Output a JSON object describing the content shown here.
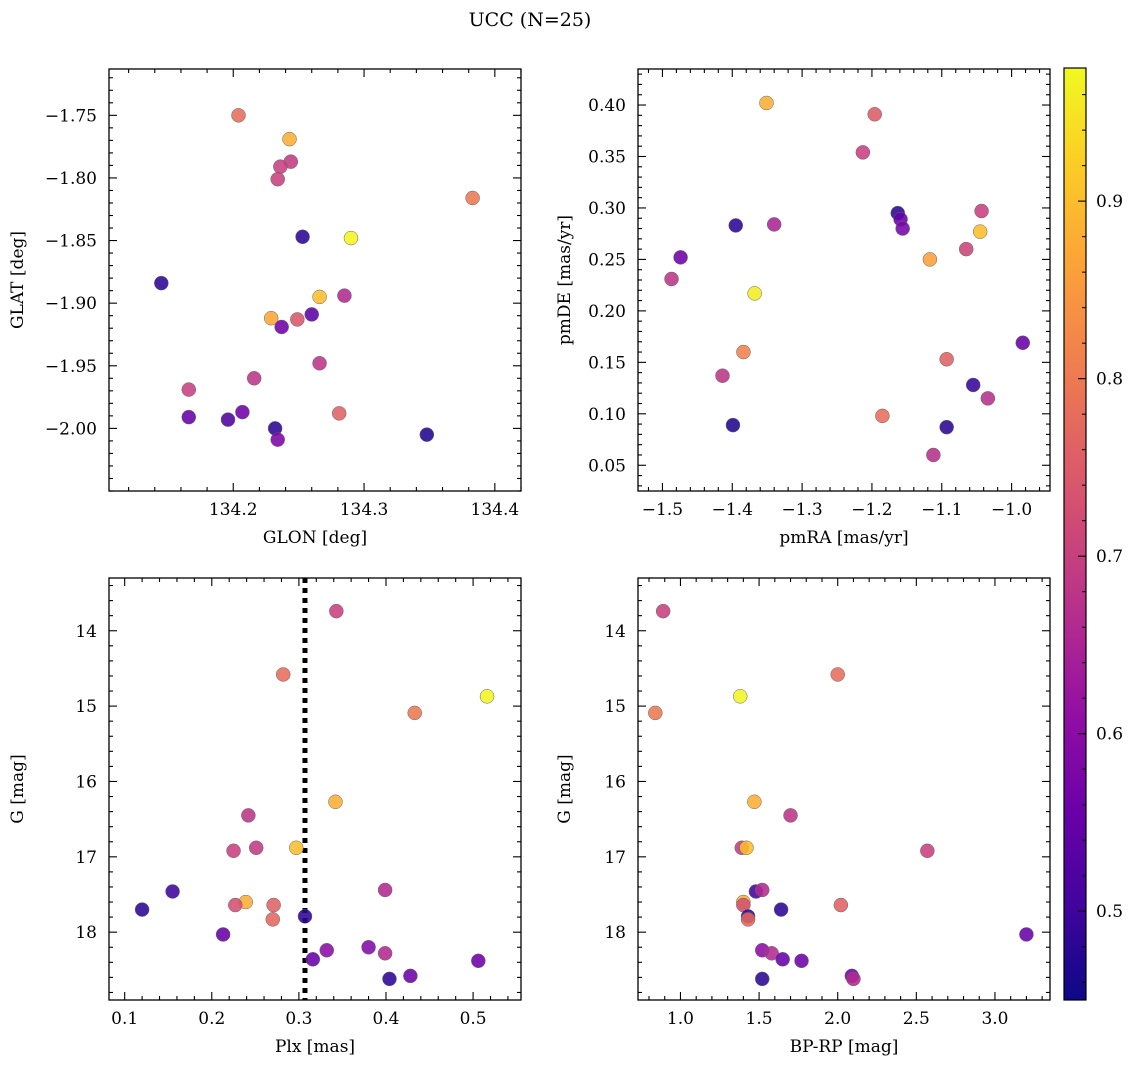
{
  "title": "UCC (N=25)",
  "colorbar": {
    "range": [
      0.45,
      0.975
    ],
    "ticks": [
      0.5,
      0.6,
      0.7,
      0.8,
      0.9
    ],
    "tick_labels": [
      "0.5",
      "0.6",
      "0.7",
      "0.8",
      "0.9"
    ],
    "colormap": "plasma"
  },
  "chart_data": [
    {
      "type": "scatter",
      "xlabel": "GLON [deg]",
      "ylabel": "GLAT [deg]",
      "xlim": [
        134.105,
        134.42
      ],
      "ylim": [
        -2.05,
        -1.713
      ],
      "y_inverted": false,
      "xticks": [
        134.2,
        134.3,
        134.4
      ],
      "xtick_labels": [
        "134.2",
        "134.3",
        "134.4"
      ],
      "yticks": [
        -2.0,
        -1.95,
        -1.9,
        -1.85,
        -1.8,
        -1.75
      ],
      "ytick_labels": [
        "−2.00",
        "−1.95",
        "−1.90",
        "−1.85",
        "−1.80",
        "−1.75"
      ],
      "points": [
        {
          "x": 134.204,
          "y": -1.75,
          "c": 0.78
        },
        {
          "x": 134.243,
          "y": -1.769,
          "c": 0.88
        },
        {
          "x": 134.244,
          "y": -1.787,
          "c": 0.69
        },
        {
          "x": 134.236,
          "y": -1.791,
          "c": 0.7
        },
        {
          "x": 134.234,
          "y": -1.801,
          "c": 0.7
        },
        {
          "x": 134.383,
          "y": -1.816,
          "c": 0.8
        },
        {
          "x": 134.253,
          "y": -1.847,
          "c": 0.48
        },
        {
          "x": 134.29,
          "y": -1.848,
          "c": 0.97
        },
        {
          "x": 134.145,
          "y": -1.884,
          "c": 0.48
        },
        {
          "x": 134.266,
          "y": -1.895,
          "c": 0.9
        },
        {
          "x": 134.285,
          "y": -1.894,
          "c": 0.66
        },
        {
          "x": 134.26,
          "y": -1.909,
          "c": 0.54
        },
        {
          "x": 134.229,
          "y": -1.912,
          "c": 0.87
        },
        {
          "x": 134.249,
          "y": -1.913,
          "c": 0.74
        },
        {
          "x": 134.237,
          "y": -1.919,
          "c": 0.56
        },
        {
          "x": 134.266,
          "y": -1.948,
          "c": 0.68
        },
        {
          "x": 134.216,
          "y": -1.96,
          "c": 0.68
        },
        {
          "x": 134.166,
          "y": -1.969,
          "c": 0.7
        },
        {
          "x": 134.207,
          "y": -1.987,
          "c": 0.56
        },
        {
          "x": 134.281,
          "y": -1.988,
          "c": 0.76
        },
        {
          "x": 134.166,
          "y": -1.991,
          "c": 0.55
        },
        {
          "x": 134.196,
          "y": -1.993,
          "c": 0.52
        },
        {
          "x": 134.232,
          "y": -2.0,
          "c": 0.48
        },
        {
          "x": 134.234,
          "y": -2.009,
          "c": 0.58
        },
        {
          "x": 134.348,
          "y": -2.005,
          "c": 0.47
        }
      ]
    },
    {
      "type": "scatter",
      "xlabel": "pmRA [mas/yr]",
      "ylabel": "pmDE [mas/yr]",
      "xlim": [
        -1.535,
        -0.945
      ],
      "ylim": [
        0.025,
        0.435
      ],
      "y_inverted": false,
      "xticks": [
        -1.5,
        -1.4,
        -1.3,
        -1.2,
        -1.1,
        -1.0
      ],
      "xtick_labels": [
        "−1.5",
        "−1.4",
        "−1.3",
        "−1.2",
        "−1.1",
        "−1.0"
      ],
      "yticks": [
        0.05,
        0.1,
        0.15,
        0.2,
        0.25,
        0.3,
        0.35,
        0.4
      ],
      "ytick_labels": [
        "0.05",
        "0.10",
        "0.15",
        "0.20",
        "0.25",
        "0.30",
        "0.35",
        "0.40"
      ],
      "points": [
        {
          "x": -1.351,
          "y": 0.402,
          "c": 0.88
        },
        {
          "x": -1.196,
          "y": 0.391,
          "c": 0.75
        },
        {
          "x": -1.213,
          "y": 0.354,
          "c": 0.7
        },
        {
          "x": -1.163,
          "y": 0.295,
          "c": 0.48
        },
        {
          "x": -1.159,
          "y": 0.289,
          "c": 0.55
        },
        {
          "x": -1.156,
          "y": 0.28,
          "c": 0.57
        },
        {
          "x": -1.043,
          "y": 0.297,
          "c": 0.7
        },
        {
          "x": -1.045,
          "y": 0.277,
          "c": 0.9
        },
        {
          "x": -1.395,
          "y": 0.283,
          "c": 0.48
        },
        {
          "x": -1.34,
          "y": 0.284,
          "c": 0.65
        },
        {
          "x": -1.474,
          "y": 0.252,
          "c": 0.56
        },
        {
          "x": -1.487,
          "y": 0.231,
          "c": 0.68
        },
        {
          "x": -1.117,
          "y": 0.25,
          "c": 0.86
        },
        {
          "x": -1.065,
          "y": 0.26,
          "c": 0.71
        },
        {
          "x": -1.368,
          "y": 0.217,
          "c": 0.96
        },
        {
          "x": -1.384,
          "y": 0.16,
          "c": 0.81
        },
        {
          "x": -1.093,
          "y": 0.153,
          "c": 0.76
        },
        {
          "x": -1.414,
          "y": 0.137,
          "c": 0.68
        },
        {
          "x": -0.984,
          "y": 0.169,
          "c": 0.55
        },
        {
          "x": -1.055,
          "y": 0.128,
          "c": 0.49
        },
        {
          "x": -1.034,
          "y": 0.115,
          "c": 0.67
        },
        {
          "x": -1.185,
          "y": 0.098,
          "c": 0.78
        },
        {
          "x": -1.399,
          "y": 0.089,
          "c": 0.47
        },
        {
          "x": -1.093,
          "y": 0.087,
          "c": 0.48
        },
        {
          "x": -1.112,
          "y": 0.06,
          "c": 0.67
        }
      ]
    },
    {
      "type": "scatter",
      "xlabel": "Plx [mas]",
      "ylabel": "G [mag]",
      "xlim": [
        0.082,
        0.555
      ],
      "ylim": [
        18.9,
        13.3
      ],
      "y_inverted": true,
      "xticks": [
        0.1,
        0.2,
        0.3,
        0.4,
        0.5
      ],
      "xtick_labels": [
        "0.1",
        "0.2",
        "0.3",
        "0.4",
        "0.5"
      ],
      "yticks": [
        14,
        15,
        16,
        17,
        18
      ],
      "ytick_labels": [
        "14",
        "15",
        "16",
        "17",
        "18"
      ],
      "vline": 0.307,
      "points": [
        {
          "x": 0.343,
          "y": 13.74,
          "c": 0.7
        },
        {
          "x": 0.282,
          "y": 14.58,
          "c": 0.78
        },
        {
          "x": 0.516,
          "y": 14.87,
          "c": 0.97
        },
        {
          "x": 0.433,
          "y": 15.09,
          "c": 0.8
        },
        {
          "x": 0.342,
          "y": 16.27,
          "c": 0.88
        },
        {
          "x": 0.242,
          "y": 16.45,
          "c": 0.68
        },
        {
          "x": 0.225,
          "y": 16.92,
          "c": 0.7
        },
        {
          "x": 0.251,
          "y": 16.88,
          "c": 0.69
        },
        {
          "x": 0.297,
          "y": 16.88,
          "c": 0.9
        },
        {
          "x": 0.12,
          "y": 17.7,
          "c": 0.48
        },
        {
          "x": 0.155,
          "y": 17.46,
          "c": 0.5
        },
        {
          "x": 0.239,
          "y": 17.6,
          "c": 0.88
        },
        {
          "x": 0.227,
          "y": 17.64,
          "c": 0.73
        },
        {
          "x": 0.271,
          "y": 17.64,
          "c": 0.76
        },
        {
          "x": 0.27,
          "y": 17.83,
          "c": 0.77
        },
        {
          "x": 0.399,
          "y": 17.44,
          "c": 0.66
        },
        {
          "x": 0.307,
          "y": 17.79,
          "c": 0.48
        },
        {
          "x": 0.213,
          "y": 18.03,
          "c": 0.55
        },
        {
          "x": 0.38,
          "y": 18.2,
          "c": 0.59
        },
        {
          "x": 0.332,
          "y": 18.24,
          "c": 0.6
        },
        {
          "x": 0.399,
          "y": 18.28,
          "c": 0.66
        },
        {
          "x": 0.316,
          "y": 18.36,
          "c": 0.55
        },
        {
          "x": 0.506,
          "y": 18.38,
          "c": 0.56
        },
        {
          "x": 0.428,
          "y": 18.58,
          "c": 0.56
        },
        {
          "x": 0.404,
          "y": 18.62,
          "c": 0.48
        }
      ]
    },
    {
      "type": "scatter",
      "xlabel": "BP-RP [mag]",
      "ylabel": "G [mag]",
      "xlim": [
        0.73,
        3.35
      ],
      "ylim": [
        18.9,
        13.3
      ],
      "y_inverted": true,
      "xticks": [
        1.0,
        1.5,
        2.0,
        2.5,
        3.0
      ],
      "xtick_labels": [
        "1.0",
        "1.5",
        "2.0",
        "2.5",
        "3.0"
      ],
      "yticks": [
        14,
        15,
        16,
        17,
        18
      ],
      "ytick_labels": [
        "14",
        "15",
        "16",
        "17",
        "18"
      ],
      "points": [
        {
          "x": 0.89,
          "y": 13.74,
          "c": 0.7
        },
        {
          "x": 2.0,
          "y": 14.58,
          "c": 0.78
        },
        {
          "x": 1.38,
          "y": 14.87,
          "c": 0.97
        },
        {
          "x": 0.84,
          "y": 15.09,
          "c": 0.8
        },
        {
          "x": 1.47,
          "y": 16.27,
          "c": 0.88
        },
        {
          "x": 1.7,
          "y": 16.45,
          "c": 0.68
        },
        {
          "x": 2.57,
          "y": 16.92,
          "c": 0.7
        },
        {
          "x": 1.39,
          "y": 16.88,
          "c": 0.69
        },
        {
          "x": 1.42,
          "y": 16.88,
          "c": 0.9
        },
        {
          "x": 1.48,
          "y": 17.46,
          "c": 0.5
        },
        {
          "x": 1.52,
          "y": 17.44,
          "c": 0.66
        },
        {
          "x": 1.4,
          "y": 17.6,
          "c": 0.88
        },
        {
          "x": 1.4,
          "y": 17.64,
          "c": 0.73
        },
        {
          "x": 2.02,
          "y": 17.64,
          "c": 0.76
        },
        {
          "x": 1.64,
          "y": 17.7,
          "c": 0.48
        },
        {
          "x": 1.43,
          "y": 17.79,
          "c": 0.48
        },
        {
          "x": 1.43,
          "y": 17.83,
          "c": 0.77
        },
        {
          "x": 3.2,
          "y": 18.03,
          "c": 0.55
        },
        {
          "x": 1.52,
          "y": 18.24,
          "c": 0.6
        },
        {
          "x": 1.58,
          "y": 18.28,
          "c": 0.66
        },
        {
          "x": 1.65,
          "y": 18.36,
          "c": 0.55
        },
        {
          "x": 1.77,
          "y": 18.38,
          "c": 0.56
        },
        {
          "x": 2.09,
          "y": 18.58,
          "c": 0.56
        },
        {
          "x": 1.52,
          "y": 18.62,
          "c": 0.48
        },
        {
          "x": 2.1,
          "y": 18.62,
          "c": 0.66
        }
      ]
    }
  ]
}
